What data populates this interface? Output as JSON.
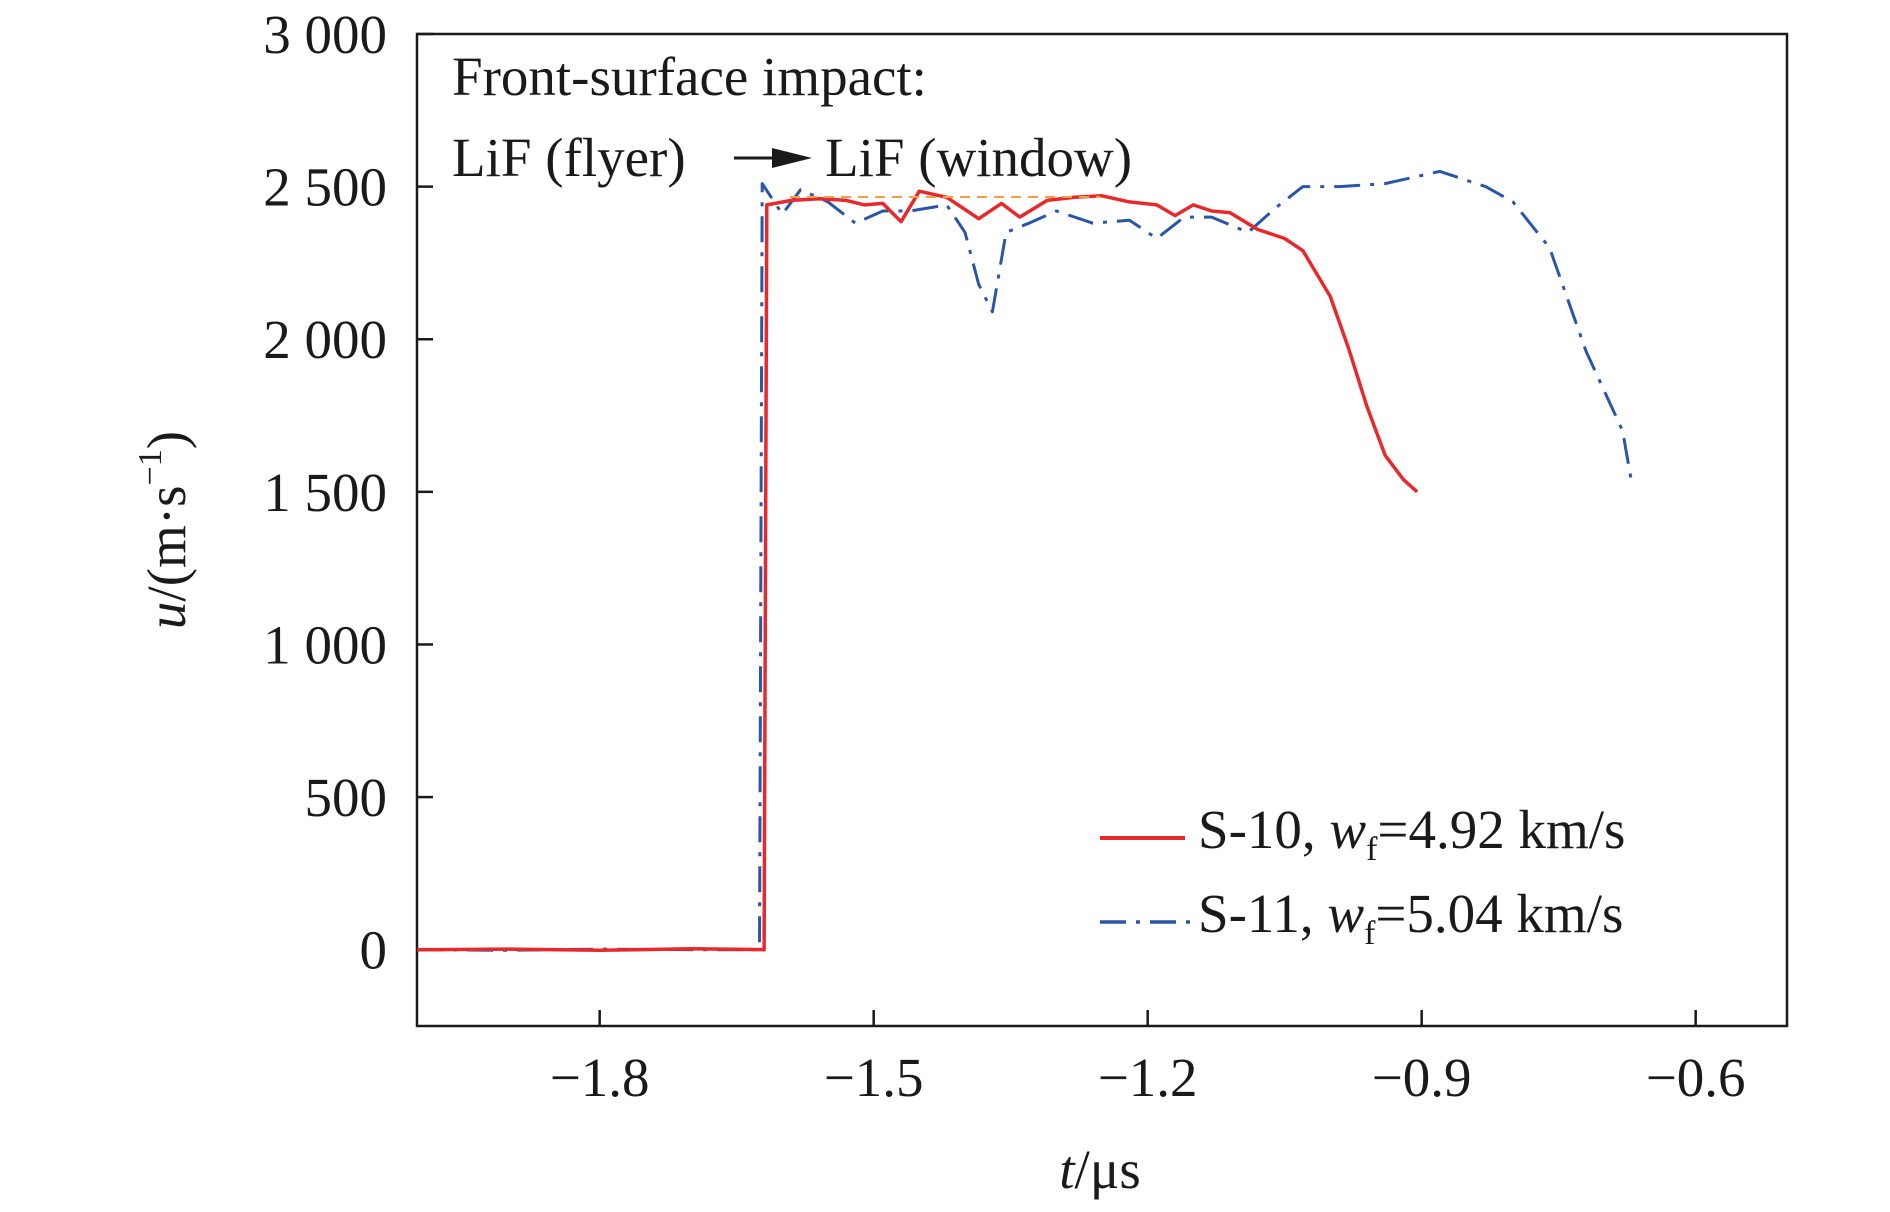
{
  "chart_data": {
    "type": "line",
    "title": "",
    "xlabel": {
      "var": "t",
      "unit": "/μs"
    },
    "ylabel": {
      "var": "u",
      "unit_open": "/(m·s",
      "unit_sup": "−1",
      "unit_close": ")"
    },
    "xlim": [
      -2.0,
      -0.5
    ],
    "ylim": [
      -250,
      3000
    ],
    "x_ticks": [
      {
        "value": -1.8,
        "label": "−1.8"
      },
      {
        "value": -1.5,
        "label": "−1.5"
      },
      {
        "value": -1.2,
        "label": "−1.2"
      },
      {
        "value": -0.9,
        "label": "−0.9"
      },
      {
        "value": -0.6,
        "label": "−0.6"
      }
    ],
    "y_ticks": [
      {
        "value": 0,
        "label": "0"
      },
      {
        "value": 500,
        "label": "500"
      },
      {
        "value": 1000,
        "label": "1 000"
      },
      {
        "value": 1500,
        "label": "1 500"
      },
      {
        "value": 2000,
        "label": "2 000"
      },
      {
        "value": 2500,
        "label": "2 500"
      },
      {
        "value": 3000,
        "label": "3 000"
      }
    ],
    "grid": false,
    "legend_position": "bottom-right",
    "annotation": {
      "line1": "Front-surface impact:",
      "flyer": "LiF (flyer)",
      "window": "LiF (window)"
    },
    "series": [
      {
        "id": "s10",
        "legend_prefix": "S-10, ",
        "legend_var": "w",
        "legend_sub": "f",
        "legend_value": "=4.92 km/s",
        "color": "#e8292b",
        "style": "solid",
        "points": [
          [
            -2.0,
            0
          ],
          [
            -1.9,
            2
          ],
          [
            -1.8,
            -2
          ],
          [
            -1.7,
            3
          ],
          [
            -1.62,
            0
          ],
          [
            -1.617,
            2440
          ],
          [
            -1.59,
            2455
          ],
          [
            -1.56,
            2460
          ],
          [
            -1.53,
            2455
          ],
          [
            -1.51,
            2440
          ],
          [
            -1.49,
            2445
          ],
          [
            -1.47,
            2385
          ],
          [
            -1.45,
            2485
          ],
          [
            -1.42,
            2465
          ],
          [
            -1.4,
            2425
          ],
          [
            -1.385,
            2395
          ],
          [
            -1.36,
            2445
          ],
          [
            -1.34,
            2400
          ],
          [
            -1.31,
            2455
          ],
          [
            -1.28,
            2465
          ],
          [
            -1.25,
            2470
          ],
          [
            -1.22,
            2450
          ],
          [
            -1.19,
            2440
          ],
          [
            -1.17,
            2405
          ],
          [
            -1.15,
            2440
          ],
          [
            -1.13,
            2420
          ],
          [
            -1.11,
            2415
          ],
          [
            -1.08,
            2360
          ],
          [
            -1.05,
            2330
          ],
          [
            -1.03,
            2290
          ],
          [
            -1.0,
            2140
          ],
          [
            -0.98,
            1970
          ],
          [
            -0.96,
            1780
          ],
          [
            -0.94,
            1620
          ],
          [
            -0.92,
            1540
          ],
          [
            -0.905,
            1500
          ]
        ]
      },
      {
        "id": "s11",
        "legend_prefix": "S-11, ",
        "legend_var": "w",
        "legend_sub": "f",
        "legend_value": "=5.04 km/s",
        "color": "#2a56a8",
        "style": "dashdot",
        "points": [
          [
            -2.0,
            0
          ],
          [
            -1.9,
            -2
          ],
          [
            -1.8,
            2
          ],
          [
            -1.7,
            0
          ],
          [
            -1.625,
            0
          ],
          [
            -1.622,
            2510
          ],
          [
            -1.6,
            2410
          ],
          [
            -1.58,
            2490
          ],
          [
            -1.55,
            2450
          ],
          [
            -1.52,
            2380
          ],
          [
            -1.49,
            2420
          ],
          [
            -1.46,
            2420
          ],
          [
            -1.42,
            2440
          ],
          [
            -1.4,
            2350
          ],
          [
            -1.385,
            2180
          ],
          [
            -1.37,
            2090
          ],
          [
            -1.355,
            2350
          ],
          [
            -1.33,
            2380
          ],
          [
            -1.3,
            2420
          ],
          [
            -1.26,
            2380
          ],
          [
            -1.22,
            2390
          ],
          [
            -1.19,
            2330
          ],
          [
            -1.16,
            2400
          ],
          [
            -1.13,
            2400
          ],
          [
            -1.09,
            2350
          ],
          [
            -1.06,
            2430
          ],
          [
            -1.03,
            2500
          ],
          [
            -0.99,
            2500
          ],
          [
            -0.94,
            2510
          ],
          [
            -0.88,
            2550
          ],
          [
            -0.83,
            2500
          ],
          [
            -0.8,
            2450
          ],
          [
            -0.76,
            2300
          ],
          [
            -0.72,
            1960
          ],
          [
            -0.68,
            1700
          ],
          [
            -0.67,
            1530
          ]
        ]
      }
    ]
  }
}
